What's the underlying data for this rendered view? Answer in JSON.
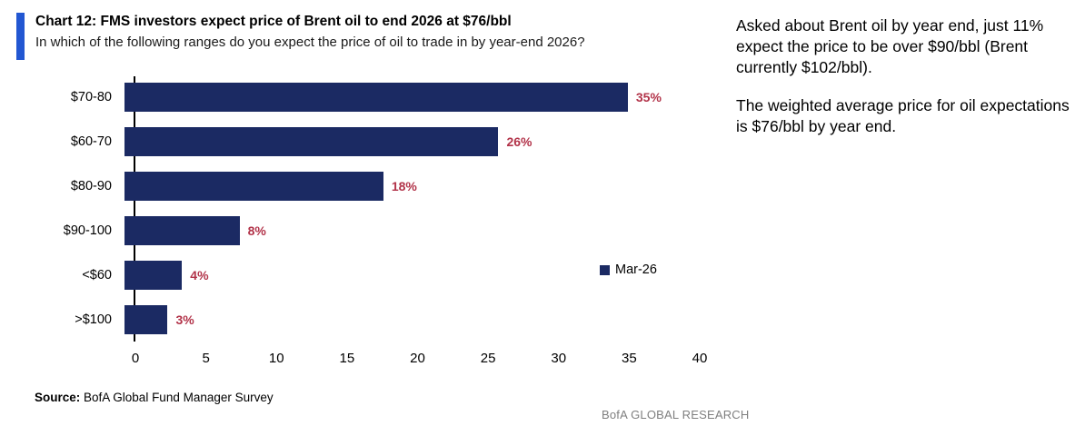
{
  "header": {
    "title": "Chart 12: FMS investors expect price of Brent oil to end 2026 at $76/bbl",
    "subtitle": "In which of the following ranges do you expect the price of oil to trade in by year-end 2026?"
  },
  "chart_data": {
    "type": "bar",
    "orientation": "horizontal",
    "categories": [
      "$70-80",
      "$60-70",
      "$80-90",
      "$90-100",
      "<$60",
      ">$100"
    ],
    "values": [
      35,
      26,
      18,
      8,
      4,
      3
    ],
    "value_labels": [
      "35%",
      "26%",
      "18%",
      "8%",
      "4%",
      "3%"
    ],
    "series_name": "Mar-26",
    "xlim": [
      0,
      40
    ],
    "x_ticks": [
      0,
      5,
      10,
      15,
      20,
      25,
      30,
      35,
      40
    ],
    "bar_color": "#1b2a63",
    "value_label_color": "#b23349",
    "legend_position": "right-middle",
    "grid": "off",
    "title": "Chart 12: FMS investors expect price of Brent oil to end 2026 at $76/bbl",
    "xlabel": "",
    "ylabel": ""
  },
  "legend": {
    "label": "Mar-26",
    "swatch_color": "#1b2a63"
  },
  "footer": {
    "source_label": "Source:",
    "source_text": " BofA Global Fund Manager Survey",
    "brand": "BofA GLOBAL RESEARCH"
  },
  "commentary": {
    "para1": "Asked about Brent oil by year end, just 11% expect the price to be over $90/bbl (Brent currently $102/bbl).",
    "para2": "The weighted average price for oil expectations is $76/bbl by year end."
  },
  "colors": {
    "accent_bar": "#2257d2",
    "bar_navy": "#1b2a63",
    "label_crimson": "#b23349",
    "brand_gray": "#7f7f7f"
  }
}
